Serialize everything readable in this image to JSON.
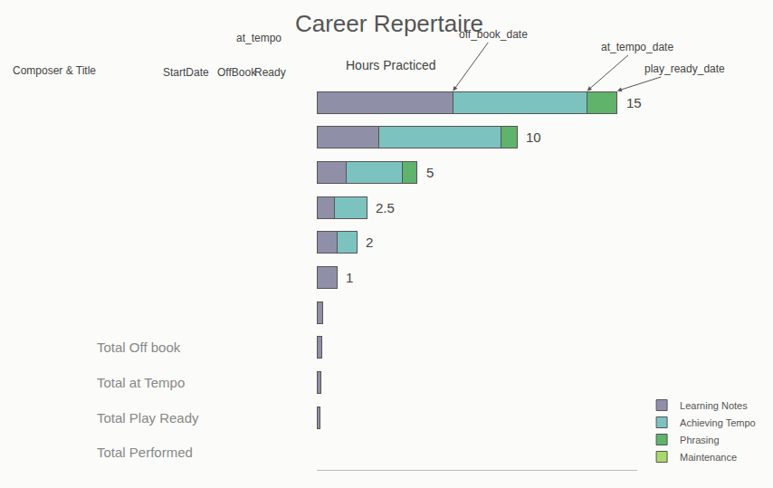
{
  "chart_data": {
    "type": "bar",
    "title": "Career Repertaire",
    "orientation": "horizontal",
    "stacked": true,
    "categories": [
      null,
      null,
      null,
      null,
      null,
      null,
      null,
      null,
      null,
      null
    ],
    "series": [
      {
        "name": "Learning Notes",
        "color": "#8f8fa8",
        "values": [
          6.8,
          3.1,
          1.45,
          0.9,
          1,
          1,
          0.3,
          0.25,
          0.2,
          0.15
        ]
      },
      {
        "name": "Achieving Tempo",
        "color": "#7cc3c0",
        "values": [
          6.7,
          6.1,
          2.8,
          1.6,
          1,
          0,
          0,
          0,
          0,
          0
        ]
      },
      {
        "name": "Phrasing",
        "color": "#5fb36b",
        "values": [
          1.5,
          0.8,
          0.75,
          0,
          0,
          0,
          0,
          0,
          0,
          0
        ]
      },
      {
        "name": "Maintenance",
        "color": "#a9d86e",
        "values": [
          0,
          0,
          0,
          0,
          0,
          0,
          0,
          0,
          0,
          0
        ]
      }
    ],
    "totals": [
      15,
      10,
      5,
      2.5,
      2,
      1,
      null,
      null,
      null,
      null
    ],
    "xlim": [
      0,
      16
    ],
    "xticks": [],
    "tick_labels": false,
    "grid": false,
    "legend": "lower right",
    "column_headers": [
      "Composer & Title",
      "StartDate",
      "OffBook",
      "at_tempo",
      "Ready",
      "Hours Practiced"
    ],
    "annotations": [
      "off_book_date",
      "at_tempo_date",
      "play_ready_date"
    ],
    "summary_labels": [
      "Total Off book",
      "Total at Tempo",
      "Total Play Ready",
      "Total Performed"
    ]
  }
}
